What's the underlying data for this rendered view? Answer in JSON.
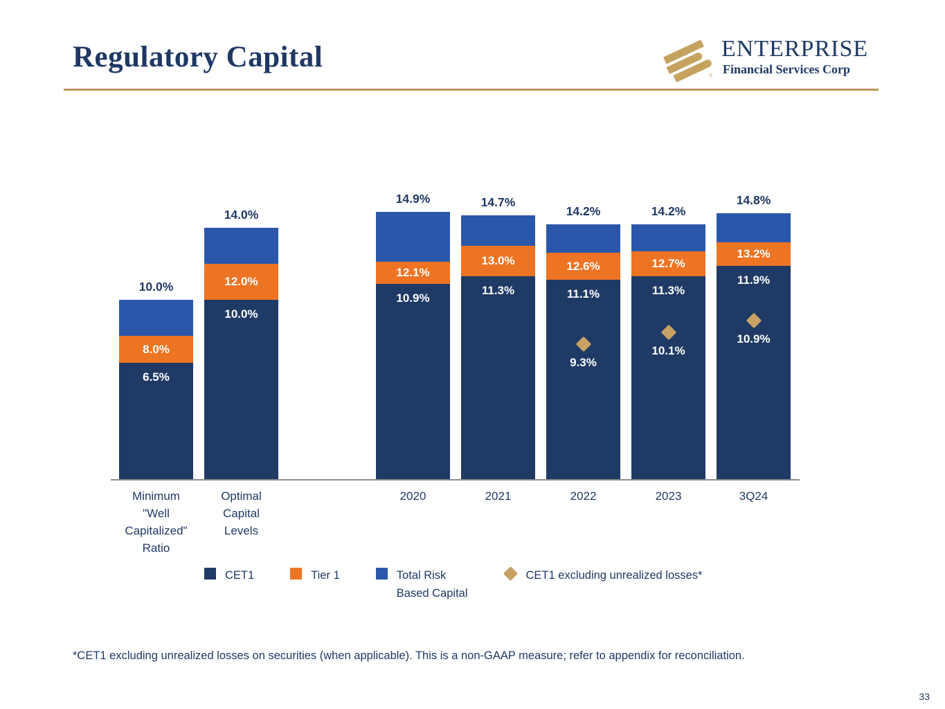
{
  "header": {
    "title": "Regulatory Capital",
    "logo": {
      "name": "ENTERPRISE",
      "subtitle": "Financial Services Corp",
      "registered": "®"
    }
  },
  "colors": {
    "navy": "#1F3A64",
    "orange": "#ED7423",
    "blue": "#2B57AB",
    "gold": "#C7A264",
    "title_navy": "#1F3864",
    "rule_gold": "#B9975B",
    "axis_gray": "#8C8C8C",
    "label_white": "#FFFFFF"
  },
  "chart_data": {
    "type": "bar",
    "subtype": "stacked-cumulative-with-diamond-markers",
    "title": "",
    "xlabel": "",
    "ylabel": "",
    "ylim": [
      0,
      15.5
    ],
    "grid": false,
    "legend_position": "bottom",
    "value_format": "0.0%",
    "categories": [
      "Minimum \"Well Capitalized\" Ratio",
      "Optimal Capital Levels",
      "2020",
      "2021",
      "2022",
      "2023",
      "3Q24"
    ],
    "category_labels": [
      "Minimum\n\"Well\nCapitalized\"\nRatio",
      "Optimal\nCapital\nLevels",
      "2020",
      "2021",
      "2022",
      "2023",
      "3Q24"
    ],
    "series": [
      {
        "name": "CET1",
        "color_key": "navy",
        "label_placement": "inside-top-white",
        "values": [
          6.5,
          10.0,
          10.9,
          11.3,
          11.1,
          11.3,
          11.9
        ]
      },
      {
        "name": "Tier 1",
        "color_key": "orange",
        "label_placement": "inside-center-white",
        "values": [
          8.0,
          12.0,
          12.1,
          13.0,
          12.6,
          12.7,
          13.2
        ]
      },
      {
        "name": "Total Risk Based Capital",
        "color_key": "blue",
        "label_placement": "above-navy",
        "values": [
          10.0,
          14.0,
          14.9,
          14.7,
          14.2,
          14.2,
          14.8
        ]
      }
    ],
    "markers": {
      "name": "CET1 excluding unrealized losses*",
      "shape": "diamond",
      "color_key": "gold",
      "values": [
        null,
        null,
        null,
        null,
        9.3,
        10.1,
        10.9
      ]
    }
  },
  "legend": {
    "items": [
      {
        "label": "CET1",
        "shape": "square",
        "color_key": "navy"
      },
      {
        "label": "Tier 1",
        "shape": "square",
        "color_key": "orange"
      },
      {
        "label": "Total Risk\nBased Capital",
        "shape": "square",
        "color_key": "blue"
      },
      {
        "label": "CET1 excluding unrealized losses*",
        "shape": "diamond",
        "color_key": "gold"
      }
    ]
  },
  "footnote": "*CET1 excluding unrealized losses on securities (when applicable). This is a non-GAAP measure; refer to appendix for reconciliation.",
  "page": {
    "number": "33"
  }
}
